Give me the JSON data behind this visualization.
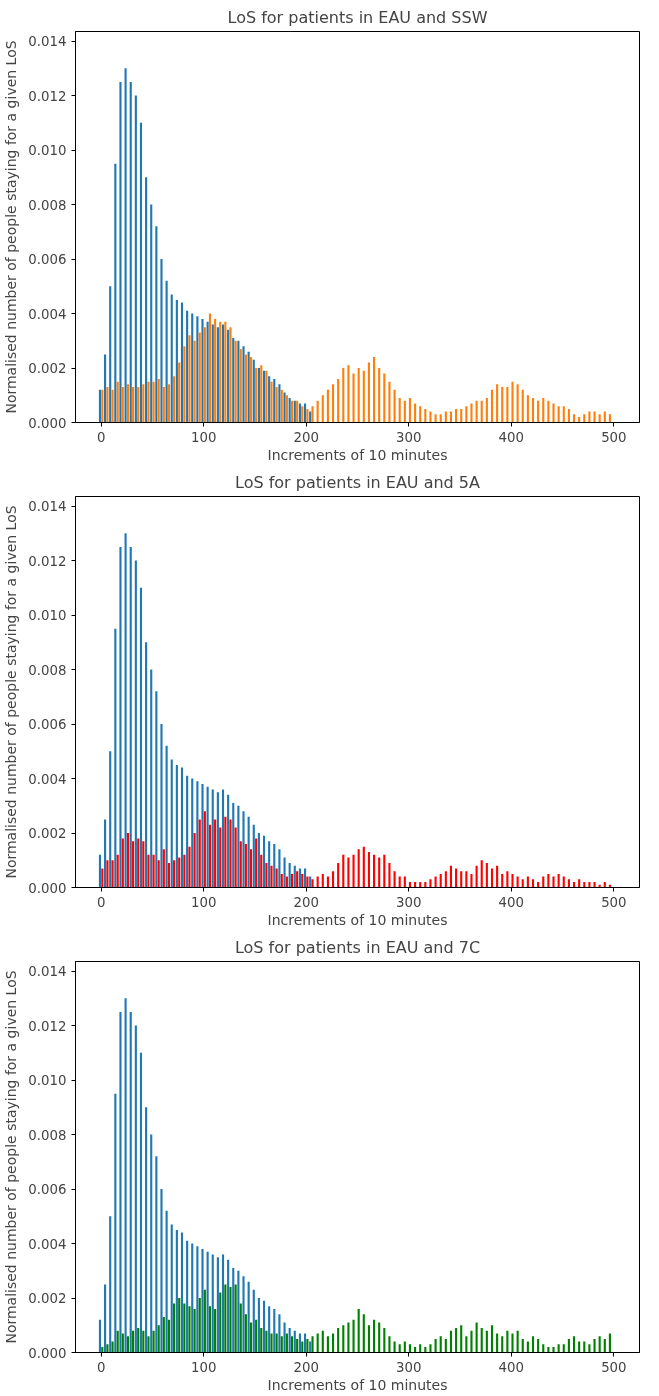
{
  "chart_data": [
    {
      "type": "bar",
      "title": "LoS for patients in EAU and SSW",
      "xlabel": "Increments of 10 minutes",
      "ylabel": "Normalised number of people staying for a given LoS",
      "grid": false,
      "xlim": [
        -25,
        525
      ],
      "ylim": [
        0,
        0.01435
      ],
      "xticks": [
        0,
        100,
        200,
        300,
        400,
        500
      ],
      "yticks": [
        {
          "value": 0,
          "label": "0.000"
        },
        {
          "value": 0.002,
          "label": "0.002"
        },
        {
          "value": 0.004,
          "label": "0.004"
        },
        {
          "value": 0.006,
          "label": "0.006"
        },
        {
          "value": 0.008,
          "label": "0.008"
        },
        {
          "value": 0.01,
          "label": "0.010"
        },
        {
          "value": 0.012,
          "label": "0.012"
        },
        {
          "value": 0.014,
          "label": "0.014"
        }
      ],
      "x": [
        0,
        5,
        10,
        15,
        20,
        25,
        30,
        35,
        40,
        45,
        50,
        55,
        60,
        65,
        70,
        75,
        80,
        85,
        90,
        95,
        100,
        105,
        110,
        115,
        120,
        125,
        130,
        135,
        140,
        145,
        150,
        155,
        160,
        165,
        170,
        175,
        180,
        185,
        190,
        195,
        200,
        205,
        210,
        215,
        220,
        225,
        230,
        235,
        240,
        245,
        250,
        255,
        260,
        265,
        270,
        275,
        280,
        285,
        290,
        295,
        300,
        305,
        310,
        315,
        320,
        325,
        330,
        335,
        340,
        345,
        350,
        355,
        360,
        365,
        370,
        375,
        380,
        385,
        390,
        395,
        400,
        405,
        410,
        415,
        420,
        425,
        430,
        435,
        440,
        445,
        450,
        455,
        460,
        465,
        470,
        475,
        480,
        485,
        490,
        495
      ],
      "series": [
        {
          "color": "#1f77b4",
          "x": [
            0,
            5,
            10,
            15,
            20,
            25,
            30,
            35,
            40,
            45,
            50,
            55,
            60,
            65,
            70,
            75,
            80,
            85,
            90,
            95,
            100,
            105,
            110,
            115,
            120,
            125,
            130,
            135,
            140,
            145,
            150,
            155,
            160,
            165,
            170,
            175,
            180,
            185,
            190,
            195,
            200,
            205
          ],
          "values": [
            0.0012,
            0.0025,
            0.005,
            0.0095,
            0.0125,
            0.013,
            0.0125,
            0.012,
            0.011,
            0.009,
            0.008,
            0.0072,
            0.006,
            0.0052,
            0.0047,
            0.0045,
            0.0044,
            0.0041,
            0.004,
            0.0039,
            0.0038,
            0.0037,
            0.0036,
            0.0035,
            0.0036,
            0.0034,
            0.0031,
            0.003,
            0.0028,
            0.0026,
            0.0023,
            0.002,
            0.0019,
            0.0017,
            0.0016,
            0.0014,
            0.0011,
            0.0009,
            0.0008,
            0.0007,
            0.0007,
            0.0004
          ]
        },
        {
          "color": "#ff7f0e",
          "values": [
            0.0012,
            0.0013,
            0.0012,
            0.0015,
            0.0013,
            0.0014,
            0.0013,
            0.0013,
            0.0014,
            0.0015,
            0.0015,
            0.0016,
            0.0013,
            0.0014,
            0.0017,
            0.0022,
            0.0028,
            0.0032,
            0.003,
            0.0033,
            0.0035,
            0.004,
            0.0038,
            0.0037,
            0.0037,
            0.0035,
            0.003,
            0.0027,
            0.0025,
            0.0024,
            0.002,
            0.0021,
            0.0019,
            0.0015,
            0.0013,
            0.0012,
            0.001,
            0.0008,
            0.0008,
            0.0006,
            0.0005,
            0.0006,
            0.0008,
            0.001,
            0.0012,
            0.0014,
            0.0016,
            0.002,
            0.0021,
            0.0018,
            0.002,
            0.0019,
            0.0022,
            0.0024,
            0.002,
            0.0018,
            0.0015,
            0.0012,
            0.0009,
            0.0008,
            0.0009,
            0.0007,
            0.0006,
            0.0005,
            0.0004,
            0.0003,
            0.0003,
            0.0004,
            0.0004,
            0.0005,
            0.0005,
            0.0006,
            0.0007,
            0.0008,
            0.0008,
            0.0009,
            0.0012,
            0.0014,
            0.0013,
            0.0013,
            0.0015,
            0.0014,
            0.0012,
            0.001,
            0.0009,
            0.0008,
            0.0009,
            0.0008,
            0.0007,
            0.0006,
            0.0006,
            0.0005,
            0.0003,
            0.0002,
            0.0003,
            0.0004,
            0.0004,
            0.0003,
            0.0004,
            0.0003
          ]
        }
      ]
    },
    {
      "type": "bar",
      "title": "LoS for patients in EAU and 5A",
      "xlabel": "Increments of 10 minutes",
      "ylabel": "Normalised number of people staying for a given LoS",
      "grid": false,
      "xlim": [
        -25,
        525
      ],
      "ylim": [
        0,
        0.01435
      ],
      "xticks": [
        0,
        100,
        200,
        300,
        400,
        500
      ],
      "yticks": [
        {
          "value": 0,
          "label": "0.000"
        },
        {
          "value": 0.002,
          "label": "0.002"
        },
        {
          "value": 0.004,
          "label": "0.004"
        },
        {
          "value": 0.006,
          "label": "0.006"
        },
        {
          "value": 0.008,
          "label": "0.008"
        },
        {
          "value": 0.01,
          "label": "0.010"
        },
        {
          "value": 0.012,
          "label": "0.012"
        },
        {
          "value": 0.014,
          "label": "0.014"
        }
      ],
      "x": [
        0,
        5,
        10,
        15,
        20,
        25,
        30,
        35,
        40,
        45,
        50,
        55,
        60,
        65,
        70,
        75,
        80,
        85,
        90,
        95,
        100,
        105,
        110,
        115,
        120,
        125,
        130,
        135,
        140,
        145,
        150,
        155,
        160,
        165,
        170,
        175,
        180,
        185,
        190,
        195,
        200,
        205,
        210,
        215,
        220,
        225,
        230,
        235,
        240,
        245,
        250,
        255,
        260,
        265,
        270,
        275,
        280,
        285,
        290,
        295,
        300,
        305,
        310,
        315,
        320,
        325,
        330,
        335,
        340,
        345,
        350,
        355,
        360,
        365,
        370,
        375,
        380,
        385,
        390,
        395,
        400,
        405,
        410,
        415,
        420,
        425,
        430,
        435,
        440,
        445,
        450,
        455,
        460,
        465,
        470,
        475,
        480,
        485,
        490,
        495
      ],
      "series": [
        {
          "color": "#1f77b4",
          "x": [
            0,
            5,
            10,
            15,
            20,
            25,
            30,
            35,
            40,
            45,
            50,
            55,
            60,
            65,
            70,
            75,
            80,
            85,
            90,
            95,
            100,
            105,
            110,
            115,
            120,
            125,
            130,
            135,
            140,
            145,
            150,
            155,
            160,
            165,
            170,
            175,
            180,
            185,
            190,
            195,
            200,
            205
          ],
          "values": [
            0.0012,
            0.0025,
            0.005,
            0.0095,
            0.0125,
            0.013,
            0.0125,
            0.012,
            0.011,
            0.009,
            0.008,
            0.0072,
            0.006,
            0.0052,
            0.0047,
            0.0045,
            0.0044,
            0.0041,
            0.004,
            0.0039,
            0.0038,
            0.0037,
            0.0036,
            0.0035,
            0.0036,
            0.0034,
            0.0031,
            0.003,
            0.0028,
            0.0026,
            0.0023,
            0.002,
            0.0019,
            0.0017,
            0.0016,
            0.0014,
            0.0011,
            0.0009,
            0.0008,
            0.0007,
            0.0007,
            0.0004
          ]
        },
        {
          "color": "#ff0000",
          "values": [
            0.0007,
            0.001,
            0.001,
            0.0012,
            0.0018,
            0.002,
            0.0017,
            0.0018,
            0.0017,
            0.0012,
            0.0012,
            0.001,
            0.0014,
            0.0009,
            0.001,
            0.0011,
            0.0012,
            0.0015,
            0.002,
            0.0025,
            0.0028,
            0.0023,
            0.0025,
            0.0022,
            0.0026,
            0.0025,
            0.0022,
            0.0017,
            0.0016,
            0.0014,
            0.0018,
            0.0012,
            0.0009,
            0.0008,
            0.0007,
            0.0005,
            0.0004,
            0.0005,
            0.0006,
            0.0005,
            0.0004,
            0.0003,
            0.0004,
            0.0005,
            0.0004,
            0.0006,
            0.0009,
            0.0012,
            0.0011,
            0.0012,
            0.0014,
            0.0015,
            0.0013,
            0.0012,
            0.0011,
            0.0012,
            0.0009,
            0.0006,
            0.0004,
            0.0004,
            0.0002,
            0.0002,
            0.0002,
            0.0002,
            0.0003,
            0.0004,
            0.0005,
            0.0006,
            0.0008,
            0.0007,
            0.0006,
            0.0006,
            0.0005,
            0.0008,
            0.001,
            0.0009,
            0.0007,
            0.0008,
            0.0005,
            0.0006,
            0.0005,
            0.0004,
            0.0003,
            0.0004,
            0.0003,
            0.0002,
            0.0004,
            0.0005,
            0.0004,
            0.0005,
            0.0004,
            0.0003,
            0.0002,
            0.0003,
            0.0002,
            0.0002,
            0.0002,
            0.0001,
            0.0002,
            0.0001
          ]
        }
      ]
    },
    {
      "type": "bar",
      "title": "LoS for patients in EAU and 7C",
      "xlabel": "Increments of 10 minutes",
      "ylabel": "Normalised number of people staying for a given LoS",
      "grid": false,
      "xlim": [
        -25,
        525
      ],
      "ylim": [
        0,
        0.01435
      ],
      "xticks": [
        0,
        100,
        200,
        300,
        400,
        500
      ],
      "yticks": [
        {
          "value": 0,
          "label": "0.000"
        },
        {
          "value": 0.002,
          "label": "0.002"
        },
        {
          "value": 0.004,
          "label": "0.004"
        },
        {
          "value": 0.006,
          "label": "0.006"
        },
        {
          "value": 0.008,
          "label": "0.008"
        },
        {
          "value": 0.01,
          "label": "0.010"
        },
        {
          "value": 0.012,
          "label": "0.012"
        },
        {
          "value": 0.014,
          "label": "0.014"
        }
      ],
      "x": [
        0,
        5,
        10,
        15,
        20,
        25,
        30,
        35,
        40,
        45,
        50,
        55,
        60,
        65,
        70,
        75,
        80,
        85,
        90,
        95,
        100,
        105,
        110,
        115,
        120,
        125,
        130,
        135,
        140,
        145,
        150,
        155,
        160,
        165,
        170,
        175,
        180,
        185,
        190,
        195,
        200,
        205,
        210,
        215,
        220,
        225,
        230,
        235,
        240,
        245,
        250,
        255,
        260,
        265,
        270,
        275,
        280,
        285,
        290,
        295,
        300,
        305,
        310,
        315,
        320,
        325,
        330,
        335,
        340,
        345,
        350,
        355,
        360,
        365,
        370,
        375,
        380,
        385,
        390,
        395,
        400,
        405,
        410,
        415,
        420,
        425,
        430,
        435,
        440,
        445,
        450,
        455,
        460,
        465,
        470,
        475,
        480,
        485,
        490,
        495
      ],
      "series": [
        {
          "color": "#1f77b4",
          "x": [
            0,
            5,
            10,
            15,
            20,
            25,
            30,
            35,
            40,
            45,
            50,
            55,
            60,
            65,
            70,
            75,
            80,
            85,
            90,
            95,
            100,
            105,
            110,
            115,
            120,
            125,
            130,
            135,
            140,
            145,
            150,
            155,
            160,
            165,
            170,
            175,
            180,
            185,
            190,
            195,
            200,
            205
          ],
          "values": [
            0.0012,
            0.0025,
            0.005,
            0.0095,
            0.0125,
            0.013,
            0.0125,
            0.012,
            0.011,
            0.009,
            0.008,
            0.0072,
            0.006,
            0.0052,
            0.0047,
            0.0045,
            0.0044,
            0.0041,
            0.004,
            0.0039,
            0.0038,
            0.0037,
            0.0036,
            0.0035,
            0.0036,
            0.0034,
            0.0031,
            0.003,
            0.0028,
            0.0026,
            0.0023,
            0.002,
            0.0019,
            0.0017,
            0.0016,
            0.0014,
            0.0011,
            0.0009,
            0.0008,
            0.0007,
            0.0007,
            0.0004
          ]
        },
        {
          "color": "#008000",
          "values": [
            0.0002,
            0.0003,
            0.0004,
            0.0008,
            0.0007,
            0.0006,
            0.0008,
            0.0009,
            0.0008,
            0.0006,
            0.0008,
            0.001,
            0.0013,
            0.0012,
            0.0018,
            0.002,
            0.0018,
            0.0017,
            0.0016,
            0.002,
            0.0023,
            0.0017,
            0.0016,
            0.0022,
            0.0025,
            0.0024,
            0.0025,
            0.0018,
            0.0014,
            0.0011,
            0.0012,
            0.0009,
            0.0008,
            0.0007,
            0.0007,
            0.0006,
            0.0007,
            0.0006,
            0.0005,
            0.0004,
            0.0005,
            0.0006,
            0.0007,
            0.0008,
            0.0006,
            0.0007,
            0.0009,
            0.001,
            0.0011,
            0.0012,
            0.0016,
            0.0014,
            0.001,
            0.0012,
            0.0011,
            0.0009,
            0.0006,
            0.0004,
            0.0003,
            0.0004,
            0.0003,
            0.0002,
            0.0003,
            0.0002,
            0.0003,
            0.0005,
            0.0006,
            0.0005,
            0.0008,
            0.0009,
            0.001,
            0.0006,
            0.0008,
            0.0011,
            0.0009,
            0.0008,
            0.001,
            0.0007,
            0.0006,
            0.0008,
            0.0007,
            0.0008,
            0.0005,
            0.0004,
            0.0006,
            0.0005,
            0.0003,
            0.0002,
            0.0002,
            0.0003,
            0.0003,
            0.0005,
            0.0006,
            0.0004,
            0.0004,
            0.0003,
            0.0005,
            0.0006,
            0.0005,
            0.0007
          ]
        }
      ]
    }
  ]
}
